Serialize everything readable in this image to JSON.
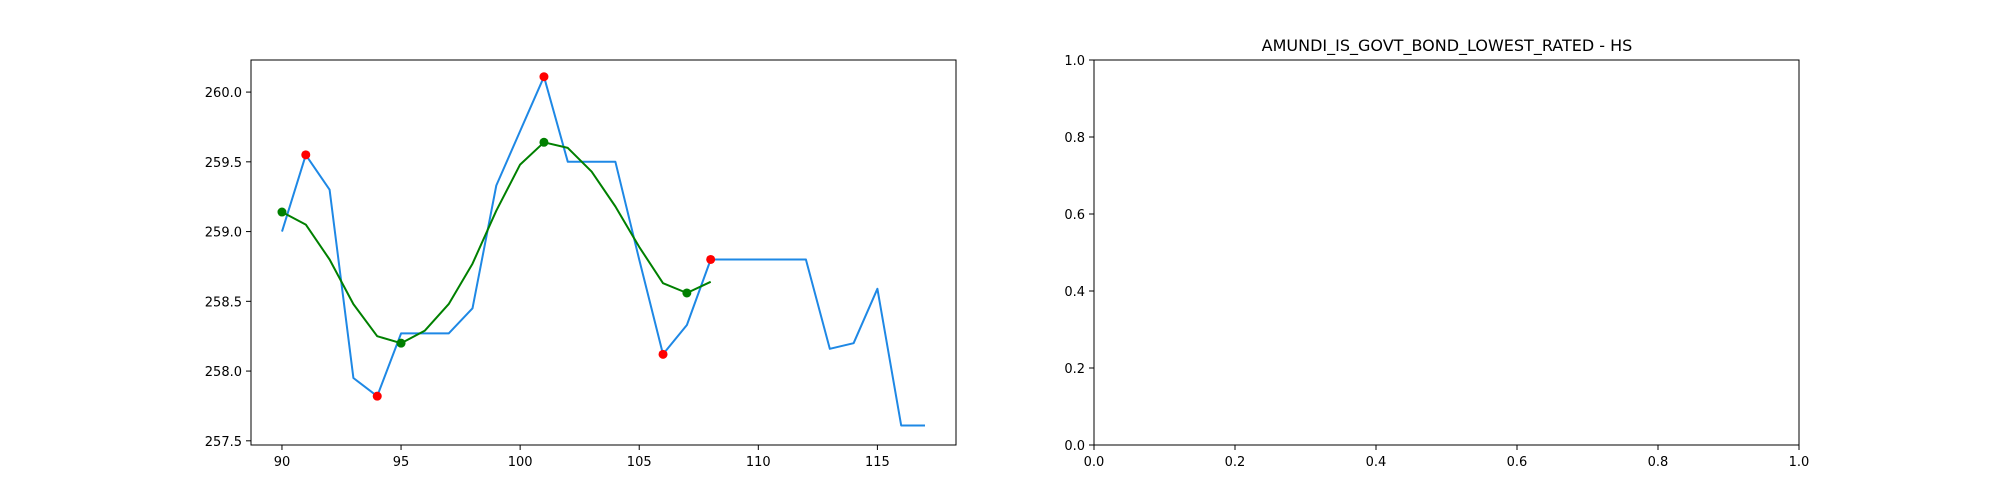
{
  "chart_data": [
    {
      "type": "line",
      "title": "",
      "xlabel": "",
      "ylabel": "",
      "xlim": [
        88.7,
        118.3
      ],
      "ylim": [
        257.47,
        260.23
      ],
      "xticks": [
        90,
        95,
        100,
        105,
        110,
        115
      ],
      "xtick_labels": [
        "90",
        "95",
        "100",
        "105",
        "110",
        "115"
      ],
      "yticks": [
        257.5,
        258.0,
        258.5,
        259.0,
        259.5,
        260.0
      ],
      "ytick_labels": [
        "257.5",
        "258.0",
        "258.5",
        "259.0",
        "259.5",
        "260.0"
      ],
      "grid": false,
      "series": [
        {
          "type": "line",
          "color": "#1e88e5",
          "x": [
            90,
            91,
            92,
            93,
            94,
            95,
            96,
            97,
            98,
            99,
            100,
            101,
            102,
            103,
            104,
            105,
            106,
            107,
            108,
            109,
            110,
            111,
            112,
            113,
            114,
            115,
            116,
            117
          ],
          "y": [
            259.0,
            259.55,
            259.3,
            257.95,
            257.82,
            258.27,
            258.27,
            258.27,
            258.45,
            259.33,
            259.72,
            260.11,
            259.5,
            259.5,
            259.5,
            258.8,
            258.12,
            258.33,
            258.8,
            258.8,
            258.8,
            258.8,
            258.8,
            258.16,
            258.2,
            258.59,
            257.61,
            257.61
          ]
        },
        {
          "type": "line",
          "color": "#008000",
          "x": [
            90,
            91,
            92,
            93,
            94,
            95,
            96,
            97,
            98,
            99,
            100,
            101,
            102,
            103,
            104,
            105,
            106,
            107,
            108
          ],
          "y": [
            259.14,
            259.05,
            258.8,
            258.48,
            258.25,
            258.2,
            258.29,
            258.48,
            258.77,
            259.15,
            259.48,
            259.64,
            259.6,
            259.43,
            259.18,
            258.89,
            258.63,
            258.56,
            258.64
          ]
        },
        {
          "type": "scatter",
          "color": "#ff0000",
          "x": [
            91,
            94,
            101,
            106,
            108
          ],
          "y": [
            259.55,
            257.82,
            260.11,
            258.12,
            258.8
          ]
        },
        {
          "type": "scatter",
          "color": "#008000",
          "x": [
            90,
            95,
            101,
            107
          ],
          "y": [
            259.14,
            258.2,
            259.64,
            258.56
          ]
        }
      ]
    },
    {
      "type": "line",
      "title": "AMUNDI_IS_GOVT_BOND_LOWEST_RATED - HS",
      "xlabel": "",
      "ylabel": "",
      "xlim": [
        0.0,
        1.0
      ],
      "ylim": [
        0.0,
        1.0
      ],
      "xticks": [
        0.0,
        0.2,
        0.4,
        0.6,
        0.8,
        1.0
      ],
      "xtick_labels": [
        "0.0",
        "0.2",
        "0.4",
        "0.6",
        "0.8",
        "1.0"
      ],
      "yticks": [
        0.0,
        0.2,
        0.4,
        0.6,
        0.8,
        1.0
      ],
      "ytick_labels": [
        "0.0",
        "0.2",
        "0.4",
        "0.6",
        "0.8",
        "1.0"
      ],
      "grid": false,
      "series": []
    }
  ]
}
